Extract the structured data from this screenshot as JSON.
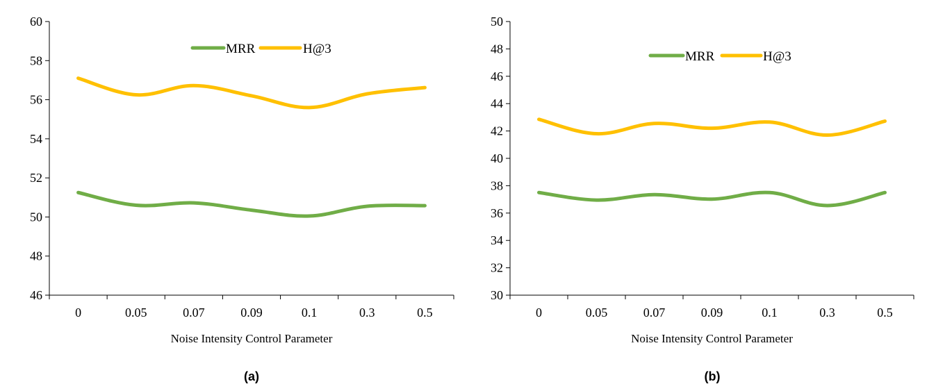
{
  "chart_data": [
    {
      "type": "line",
      "panel_label": "(a)",
      "categories": [
        "0",
        "0.05",
        "0.07",
        "0.09",
        "0.1",
        "0.3",
        "0.5"
      ],
      "series": [
        {
          "name": "MRR",
          "color": "#70ad47",
          "values": [
            51.25,
            50.6,
            50.72,
            50.35,
            50.05,
            50.55,
            50.58
          ]
        },
        {
          "name": "H@3",
          "color": "#ffc000",
          "values": [
            57.1,
            56.25,
            56.72,
            56.2,
            55.6,
            56.3,
            56.62
          ]
        }
      ],
      "xlabel": "Noise Intensity Control Parameter",
      "ylabel": "",
      "ylim": [
        46,
        60
      ],
      "yticks": [
        "46",
        "48",
        "50",
        "52",
        "54",
        "56",
        "58",
        "60"
      ],
      "legend_position": "top-center",
      "grid": false
    },
    {
      "type": "line",
      "panel_label": "(b)",
      "categories": [
        "0",
        "0.05",
        "0.07",
        "0.09",
        "0.1",
        "0.3",
        "0.5"
      ],
      "series": [
        {
          "name": "MRR",
          "color": "#70ad47",
          "values": [
            37.5,
            36.95,
            37.35,
            37.02,
            37.5,
            36.55,
            37.5
          ]
        },
        {
          "name": "H@3",
          "color": "#ffc000",
          "values": [
            42.85,
            41.8,
            42.55,
            42.2,
            42.65,
            41.7,
            42.72
          ]
        }
      ],
      "xlabel": "Noise Intensity Control Parameter",
      "ylabel": "",
      "ylim": [
        30,
        50
      ],
      "yticks": [
        "30",
        "32",
        "34",
        "36",
        "38",
        "40",
        "42",
        "44",
        "46",
        "48",
        "50"
      ],
      "legend_position": "top-center",
      "grid": false
    }
  ]
}
